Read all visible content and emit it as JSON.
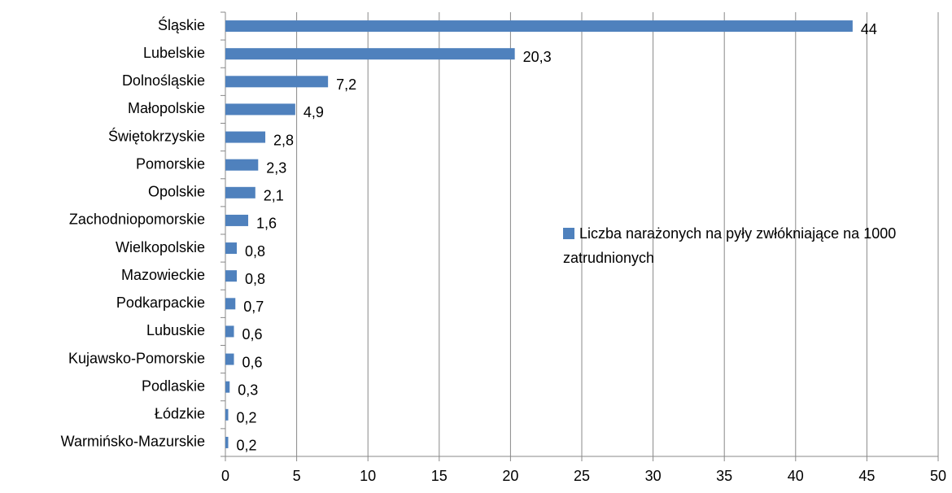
{
  "chart_data": {
    "type": "bar",
    "orientation": "horizontal",
    "categories": [
      "Śląskie",
      "Lubelskie",
      "Dolnośląskie",
      "Małopolskie",
      "Świętokrzyskie",
      "Pomorskie",
      "Opolskie",
      "Zachodniopomorskie",
      "Wielkopolskie",
      "Mazowieckie",
      "Podkarpackie",
      "Lubuskie",
      "Kujawsko-Pomorskie",
      "Podlaskie",
      "Łódzkie",
      "Warmińsko-Mazurskie"
    ],
    "series": [
      {
        "name": "Liczba narażonych na pyły zwłókniające na 1000 zatrudnionych",
        "color": "#4f81bd",
        "values": [
          44,
          20.3,
          7.2,
          4.9,
          2.8,
          2.3,
          2.1,
          1.6,
          0.8,
          0.8,
          0.7,
          0.6,
          0.6,
          0.3,
          0.2,
          0.2
        ],
        "value_labels": [
          "44",
          "20,3",
          "7,2",
          "4,9",
          "2,8",
          "2,3",
          "2,1",
          "1,6",
          "0,8",
          "0,8",
          "0,7",
          "0,6",
          "0,6",
          "0,3",
          "0,2",
          "0,2"
        ]
      }
    ],
    "xlim": [
      0,
      50
    ],
    "xticks": [
      0,
      5,
      10,
      15,
      20,
      25,
      30,
      35,
      40,
      45,
      50
    ],
    "grid": true,
    "legend": "right"
  }
}
